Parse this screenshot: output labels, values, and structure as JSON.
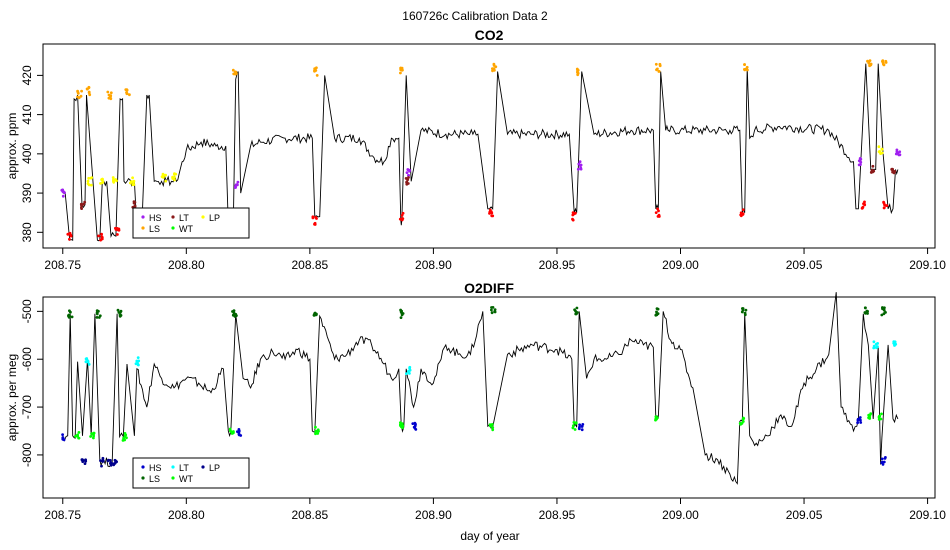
{
  "suptitle": "160726c   Calibration Data 2",
  "xlabel": "day of year",
  "chart_data": [
    {
      "type": "line",
      "title": "CO2",
      "ylabel": "approx. ppm",
      "xlim": [
        208.742,
        209.103
      ],
      "ylim": [
        376,
        428
      ],
      "xticks": [
        208.75,
        208.8,
        208.85,
        208.9,
        208.95,
        209.0,
        209.05,
        209.1
      ],
      "xtick_labels": [
        "208.75",
        "208.80",
        "208.85",
        "208.90",
        "208.95",
        "209.00",
        "209.05",
        "209.10"
      ],
      "yticks": [
        380,
        390,
        400,
        410,
        420
      ],
      "ytick_labels": [
        "380",
        "390",
        "400",
        "410",
        "420"
      ],
      "line": {
        "x": [
          208.75,
          208.751,
          208.7528,
          208.754,
          208.7546,
          208.756,
          208.7578,
          208.759,
          208.7596,
          208.764,
          208.765,
          208.766,
          208.7678,
          208.7695,
          208.7715,
          208.7732,
          208.7742,
          208.7748,
          208.776,
          208.779,
          208.78,
          208.782,
          208.784,
          208.785,
          208.787,
          208.788,
          208.79,
          208.792,
          208.794,
          208.796,
          208.8,
          208.806,
          208.812,
          208.816,
          208.817,
          208.819,
          208.82,
          208.821,
          208.822,
          208.826,
          208.83,
          208.84,
          208.851,
          208.852,
          208.854,
          208.856,
          208.86,
          208.87,
          208.876,
          208.88,
          208.883,
          208.886,
          208.8868,
          208.8872,
          208.889,
          208.891,
          208.895,
          208.905,
          208.914,
          208.916,
          208.918,
          208.922,
          208.924,
          208.926,
          208.93,
          208.94,
          208.955,
          208.957,
          208.958,
          208.96,
          208.965,
          208.98,
          208.989,
          208.99,
          208.991,
          208.992,
          208.994,
          208.995,
          209.0,
          209.01,
          209.02,
          209.024,
          209.025,
          209.026,
          209.027,
          209.028,
          209.03,
          209.04,
          209.06,
          209.07,
          209.071,
          209.072,
          209.075,
          209.077,
          209.079,
          209.08,
          209.082,
          209.084,
          209.086,
          209.087,
          209.088
        ],
        "y": [
          390,
          390,
          378,
          378,
          414,
          415,
          387,
          387,
          415,
          378,
          378,
          393,
          393,
          379,
          379,
          414,
          414,
          393,
          393,
          393,
          381,
          381,
          415,
          415,
          393,
          393,
          393,
          393,
          393,
          393,
          401,
          403,
          402,
          402,
          382,
          382,
          419,
          421,
          390,
          402,
          403,
          404,
          404,
          384,
          384,
          420,
          404,
          404,
          399,
          398,
          404,
          404,
          383,
          383,
          420,
          393,
          406,
          405,
          405,
          405,
          405,
          386,
          386,
          421,
          405,
          405,
          405,
          385,
          385,
          421,
          405,
          406,
          406,
          386,
          386,
          421,
          406,
          406,
          406,
          406,
          406,
          406,
          385,
          385,
          422,
          404,
          406,
          407,
          406,
          398,
          386,
          386,
          423,
          396,
          396,
          423,
          400,
          386,
          386,
          396,
          396
        ]
      },
      "markers": [
        {
          "code": "HS",
          "color": "#a020f0",
          "x": [
            208.7502,
            208.8203,
            208.89,
            208.9593,
            209.0725,
            209.088
          ],
          "y": [
            390,
            392,
            395,
            397,
            398,
            400
          ]
        },
        {
          "code": "LS",
          "color": "#ffa500",
          "x": [
            208.7568,
            208.7606,
            208.769,
            208.7763,
            208.8195,
            208.8525,
            208.8873,
            208.9245,
            208.958,
            208.991,
            209.0265,
            209.0765,
            209.0825
          ],
          "y": [
            415,
            416,
            415,
            416,
            421,
            421,
            421,
            422,
            421,
            422,
            422,
            423,
            423
          ]
        },
        {
          "code": "LT",
          "color": "#8b1a1a",
          "x": [
            208.7582,
            208.7785,
            208.8895,
            209.0778,
            209.086
          ],
          "y": [
            387,
            387,
            393,
            396,
            396
          ]
        },
        {
          "code": "WT",
          "color": "#00ff00",
          "x": [],
          "y": []
        },
        {
          "code": "LP",
          "color": "#ffff00",
          "x": [
            208.761,
            208.766,
            208.771,
            208.778,
            208.791,
            208.795,
            209.081
          ],
          "y": [
            393,
            393,
            393,
            393,
            394,
            394,
            401
          ]
        },
        {
          "code": "LS-low",
          "color": "#ff0000",
          "x": [
            208.7528,
            208.7653,
            208.772,
            208.8178,
            208.852,
            208.887,
            208.9235,
            208.957,
            208.9908,
            209.025,
            209.074,
            209.083
          ],
          "y": [
            379,
            379,
            380,
            383,
            383,
            384,
            385,
            384,
            385,
            385,
            387,
            387
          ]
        }
      ],
      "legend": {
        "position": "bottom-left",
        "entries": [
          [
            "HS",
            "LT",
            "LP"
          ],
          [
            "LS",
            "WT",
            ""
          ]
        ]
      }
    },
    {
      "type": "line",
      "title": "O2DIFF",
      "ylabel": "approx. per meg",
      "xlim": [
        208.742,
        209.103
      ],
      "ylim": [
        -890,
        -470
      ],
      "xticks": [
        208.75,
        208.8,
        208.85,
        208.9,
        208.95,
        209.0,
        209.05,
        209.1
      ],
      "xtick_labels": [
        "208.75",
        "208.80",
        "208.85",
        "208.90",
        "208.95",
        "209.00",
        "209.05",
        "209.10"
      ],
      "yticks": [
        -800,
        -700,
        -600,
        -500
      ],
      "ytick_labels": [
        "-800",
        "-700",
        "-600",
        "-500"
      ],
      "line": {
        "x": [
          208.75,
          208.752,
          208.753,
          208.754,
          208.755,
          208.756,
          208.758,
          208.76,
          208.7615,
          208.763,
          208.765,
          208.766,
          208.77,
          208.772,
          208.773,
          208.7745,
          208.776,
          208.779,
          208.78,
          208.784,
          208.787,
          208.79,
          208.795,
          208.8,
          208.805,
          208.81,
          208.815,
          208.817,
          208.818,
          208.82,
          208.823,
          208.826,
          208.83,
          208.835,
          208.84,
          208.845,
          208.85,
          208.851,
          208.852,
          208.854,
          208.86,
          208.865,
          208.87,
          208.875,
          208.88,
          208.883,
          208.886,
          208.887,
          208.888,
          208.889,
          208.892,
          208.895,
          208.9,
          208.905,
          208.91,
          208.915,
          208.92,
          208.922,
          208.924,
          208.93,
          208.94,
          208.95,
          208.956,
          208.957,
          208.958,
          208.959,
          208.962,
          208.965,
          208.97,
          208.975,
          208.98,
          208.985,
          208.989,
          208.99,
          208.991,
          208.993,
          208.996,
          209.0,
          209.005,
          209.01,
          209.015,
          209.02,
          209.023,
          209.024,
          209.025,
          209.026,
          209.028,
          209.03,
          209.035,
          209.04,
          209.045,
          209.05,
          209.055,
          209.06,
          209.063,
          209.065,
          209.07,
          209.072,
          209.074,
          209.076,
          209.078,
          209.08,
          209.081,
          209.082,
          209.084,
          209.086,
          209.088
        ],
        "y": [
          -760,
          -760,
          -505,
          -760,
          -765,
          -605,
          -760,
          -600,
          -760,
          -505,
          -810,
          -815,
          -815,
          -505,
          -762,
          -762,
          -610,
          -760,
          -620,
          -700,
          -610,
          -640,
          -660,
          -640,
          -650,
          -670,
          -620,
          -750,
          -752,
          -505,
          -640,
          -660,
          -600,
          -585,
          -600,
          -580,
          -600,
          -750,
          -752,
          -510,
          -600,
          -590,
          -560,
          -570,
          -610,
          -640,
          -620,
          -740,
          -742,
          -620,
          -700,
          -620,
          -650,
          -570,
          -590,
          -590,
          -500,
          -740,
          -742,
          -590,
          -570,
          -580,
          -600,
          -740,
          -742,
          -500,
          -640,
          -600,
          -600,
          -590,
          -560,
          -570,
          -575,
          -720,
          -722,
          -500,
          -560,
          -580,
          -660,
          -800,
          -810,
          -840,
          -860,
          -730,
          -730,
          -505,
          -760,
          -780,
          -760,
          -720,
          -740,
          -650,
          -620,
          -590,
          -460,
          -700,
          -750,
          -725,
          -505,
          -570,
          -725,
          -575,
          -820,
          -725,
          -570,
          -725,
          -725
        ]
      },
      "markers": [
        {
          "code": "HS",
          "color": "#0000cd",
          "x": [
            208.7505,
            208.8212,
            208.8922,
            208.9598,
            209.0722,
            209.0822
          ],
          "y": [
            -762,
            -752,
            -740,
            -740,
            -730,
            -812
          ]
        },
        {
          "code": "LS",
          "color": "#006400",
          "x": [
            208.753,
            208.7645,
            208.7728,
            208.8195,
            208.8522,
            208.8872,
            208.9242,
            208.9578,
            208.9908,
            209.0258,
            209.075,
            209.0822
          ],
          "y": [
            -505,
            -505,
            -505,
            -505,
            -510,
            -505,
            -500,
            -500,
            -500,
            -502,
            -500,
            -500
          ]
        },
        {
          "code": "LT",
          "color": "#00ffff",
          "x": [
            208.76,
            208.78,
            208.8898,
            209.079,
            209.087
          ],
          "y": [
            -603,
            -605,
            -625,
            -572,
            -568
          ]
        },
        {
          "code": "WT",
          "color": "#00ff00",
          "x": [
            208.7558,
            208.762,
            208.775,
            208.8185,
            208.8528,
            208.887,
            208.9235,
            208.9572,
            208.9905,
            209.0248,
            209.0765,
            209.081
          ],
          "y": [
            -760,
            -758,
            -762,
            -752,
            -750,
            -740,
            -740,
            -740,
            -722,
            -730,
            -722,
            -722
          ]
        },
        {
          "code": "LP",
          "color": "#00008b",
          "x": [
            208.7585,
            208.766,
            208.769,
            208.771
          ],
          "y": [
            -818,
            -815,
            -815,
            -818
          ]
        }
      ],
      "legend": {
        "position": "bottom-left",
        "entries": [
          [
            "HS",
            "LT",
            "LP"
          ],
          [
            "LS",
            "WT",
            ""
          ]
        ]
      }
    }
  ]
}
